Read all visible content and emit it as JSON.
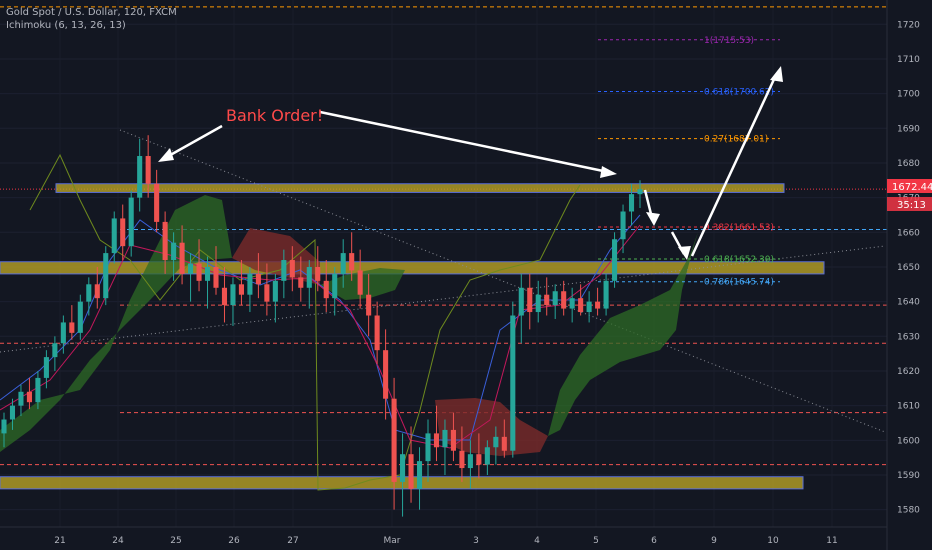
{
  "legend": {
    "symbol_line": "Gold Spot / U.S. Dollar, 120, FXCM",
    "indicator_line": "Ichimoku (6, 13, 26, 13)"
  },
  "annotation": "Bank Order!",
  "price_badge": {
    "price": "1672.44",
    "countdown": "35:13",
    "color": "#f23645"
  },
  "colors": {
    "bg": "#131722",
    "up": "#26a69a",
    "down": "#ef5350",
    "zone": "#b8a126",
    "cloud_bull": "#2e6b26",
    "cloud_bear": "#7a2a2a"
  },
  "chart_data": {
    "type": "candlestick",
    "title": "",
    "ylim": [
      1575,
      1727
    ],
    "y_ticks": [
      1580,
      1590,
      1600,
      1610,
      1620,
      1630,
      1640,
      1650,
      1660,
      1670,
      1680,
      1690,
      1700,
      1710,
      1720
    ],
    "x_ticks": [
      "21",
      "24",
      "25",
      "26",
      "27",
      "Mar",
      "3",
      "4",
      "5",
      "6",
      "9",
      "10",
      "11"
    ],
    "current_price": 1672.44,
    "fibonacci": [
      {
        "label": "1(1715.53)",
        "price": 1715.53,
        "color": "#9c27b0"
      },
      {
        "label": "0.618(1700.62)",
        "price": 1700.62,
        "color": "#2962ff"
      },
      {
        "label": "0.27(1687.01)",
        "price": 1687.01,
        "color": "#ff9800"
      },
      {
        "label": "0.382(1661.53)",
        "price": 1661.53,
        "color": "#f23645"
      },
      {
        "label": "0.618(1652.30)",
        "price": 1652.3,
        "color": "#4caf50"
      },
      {
        "label": "0.786(1645.74)",
        "price": 1645.74,
        "color": "#42a5f5"
      }
    ],
    "zones": [
      {
        "low": 1671.5,
        "high": 1674.0
      },
      {
        "low": 1648.0,
        "high": 1651.5
      },
      {
        "low": 1586.0,
        "high": 1589.5
      }
    ],
    "dashed_levels": [
      {
        "price": 1725.0,
        "color": "#ff9800"
      },
      {
        "price": 1660.8,
        "color": "#42a5f5"
      },
      {
        "price": 1639.0,
        "color": "#ef5350"
      },
      {
        "price": 1628.0,
        "color": "#ef5350"
      },
      {
        "price": 1608.0,
        "color": "#ef5350"
      },
      {
        "price": 1593.0,
        "color": "#ef5350"
      }
    ],
    "candles": [
      {
        "o": 1602,
        "h": 1608,
        "l": 1598,
        "c": 1606
      },
      {
        "o": 1606,
        "h": 1612,
        "l": 1603,
        "c": 1610
      },
      {
        "o": 1610,
        "h": 1616,
        "l": 1607,
        "c": 1614
      },
      {
        "o": 1614,
        "h": 1618,
        "l": 1609,
        "c": 1611
      },
      {
        "o": 1611,
        "h": 1620,
        "l": 1609,
        "c": 1618
      },
      {
        "o": 1618,
        "h": 1626,
        "l": 1615,
        "c": 1624
      },
      {
        "o": 1624,
        "h": 1630,
        "l": 1620,
        "c": 1628
      },
      {
        "o": 1628,
        "h": 1636,
        "l": 1625,
        "c": 1634
      },
      {
        "o": 1634,
        "h": 1639,
        "l": 1629,
        "c": 1631
      },
      {
        "o": 1631,
        "h": 1642,
        "l": 1629,
        "c": 1640
      },
      {
        "o": 1640,
        "h": 1647,
        "l": 1636,
        "c": 1645
      },
      {
        "o": 1645,
        "h": 1650,
        "l": 1638,
        "c": 1641
      },
      {
        "o": 1641,
        "h": 1656,
        "l": 1639,
        "c": 1654
      },
      {
        "o": 1654,
        "h": 1666,
        "l": 1651,
        "c": 1664
      },
      {
        "o": 1664,
        "h": 1668,
        "l": 1652,
        "c": 1656
      },
      {
        "o": 1656,
        "h": 1672,
        "l": 1653,
        "c": 1670
      },
      {
        "o": 1670,
        "h": 1687,
        "l": 1666,
        "c": 1682
      },
      {
        "o": 1682,
        "h": 1688,
        "l": 1670,
        "c": 1674
      },
      {
        "o": 1674,
        "h": 1678,
        "l": 1660,
        "c": 1663
      },
      {
        "o": 1663,
        "h": 1666,
        "l": 1648,
        "c": 1652
      },
      {
        "o": 1652,
        "h": 1660,
        "l": 1646,
        "c": 1657
      },
      {
        "o": 1657,
        "h": 1662,
        "l": 1645,
        "c": 1648
      },
      {
        "o": 1648,
        "h": 1654,
        "l": 1640,
        "c": 1651
      },
      {
        "o": 1651,
        "h": 1658,
        "l": 1643,
        "c": 1646
      },
      {
        "o": 1646,
        "h": 1653,
        "l": 1638,
        "c": 1650
      },
      {
        "o": 1650,
        "h": 1656,
        "l": 1642,
        "c": 1644
      },
      {
        "o": 1644,
        "h": 1650,
        "l": 1634,
        "c": 1639
      },
      {
        "o": 1639,
        "h": 1647,
        "l": 1633,
        "c": 1645
      },
      {
        "o": 1645,
        "h": 1652,
        "l": 1639,
        "c": 1642
      },
      {
        "o": 1642,
        "h": 1650,
        "l": 1637,
        "c": 1648
      },
      {
        "o": 1648,
        "h": 1654,
        "l": 1641,
        "c": 1645
      },
      {
        "o": 1645,
        "h": 1651,
        "l": 1636,
        "c": 1640
      },
      {
        "o": 1640,
        "h": 1648,
        "l": 1634,
        "c": 1646
      },
      {
        "o": 1646,
        "h": 1655,
        "l": 1641,
        "c": 1652
      },
      {
        "o": 1652,
        "h": 1656,
        "l": 1643,
        "c": 1647
      },
      {
        "o": 1647,
        "h": 1653,
        "l": 1640,
        "c": 1644
      },
      {
        "o": 1644,
        "h": 1652,
        "l": 1638,
        "c": 1650
      },
      {
        "o": 1650,
        "h": 1656,
        "l": 1643,
        "c": 1646
      },
      {
        "o": 1646,
        "h": 1652,
        "l": 1637,
        "c": 1641
      },
      {
        "o": 1641,
        "h": 1650,
        "l": 1636,
        "c": 1648
      },
      {
        "o": 1648,
        "h": 1658,
        "l": 1644,
        "c": 1654
      },
      {
        "o": 1654,
        "h": 1660,
        "l": 1646,
        "c": 1649
      },
      {
        "o": 1649,
        "h": 1655,
        "l": 1638,
        "c": 1642
      },
      {
        "o": 1642,
        "h": 1648,
        "l": 1630,
        "c": 1636
      },
      {
        "o": 1636,
        "h": 1640,
        "l": 1622,
        "c": 1626
      },
      {
        "o": 1626,
        "h": 1632,
        "l": 1606,
        "c": 1612
      },
      {
        "o": 1612,
        "h": 1618,
        "l": 1580,
        "c": 1588
      },
      {
        "o": 1588,
        "h": 1602,
        "l": 1578,
        "c": 1596
      },
      {
        "o": 1596,
        "h": 1604,
        "l": 1582,
        "c": 1586
      },
      {
        "o": 1586,
        "h": 1598,
        "l": 1580,
        "c": 1594
      },
      {
        "o": 1594,
        "h": 1606,
        "l": 1588,
        "c": 1602
      },
      {
        "o": 1602,
        "h": 1610,
        "l": 1594,
        "c": 1598
      },
      {
        "o": 1598,
        "h": 1606,
        "l": 1590,
        "c": 1603
      },
      {
        "o": 1603,
        "h": 1608,
        "l": 1594,
        "c": 1597
      },
      {
        "o": 1597,
        "h": 1604,
        "l": 1588,
        "c": 1592
      },
      {
        "o": 1592,
        "h": 1600,
        "l": 1586,
        "c": 1596
      },
      {
        "o": 1596,
        "h": 1602,
        "l": 1589,
        "c": 1593
      },
      {
        "o": 1593,
        "h": 1600,
        "l": 1590,
        "c": 1598
      },
      {
        "o": 1598,
        "h": 1604,
        "l": 1593,
        "c": 1601
      },
      {
        "o": 1601,
        "h": 1606,
        "l": 1595,
        "c": 1597
      },
      {
        "o": 1597,
        "h": 1640,
        "l": 1595,
        "c": 1636
      },
      {
        "o": 1636,
        "h": 1648,
        "l": 1628,
        "c": 1644
      },
      {
        "o": 1644,
        "h": 1648,
        "l": 1632,
        "c": 1637
      },
      {
        "o": 1637,
        "h": 1646,
        "l": 1634,
        "c": 1642
      },
      {
        "o": 1642,
        "h": 1647,
        "l": 1636,
        "c": 1639
      },
      {
        "o": 1639,
        "h": 1645,
        "l": 1635,
        "c": 1643
      },
      {
        "o": 1643,
        "h": 1646,
        "l": 1636,
        "c": 1638
      },
      {
        "o": 1638,
        "h": 1644,
        "l": 1634,
        "c": 1641
      },
      {
        "o": 1641,
        "h": 1645,
        "l": 1636,
        "c": 1637
      },
      {
        "o": 1637,
        "h": 1643,
        "l": 1634,
        "c": 1640
      },
      {
        "o": 1640,
        "h": 1644,
        "l": 1636,
        "c": 1638
      },
      {
        "o": 1638,
        "h": 1648,
        "l": 1636,
        "c": 1646
      },
      {
        "o": 1646,
        "h": 1660,
        "l": 1644,
        "c": 1658
      },
      {
        "o": 1658,
        "h": 1668,
        "l": 1654,
        "c": 1666
      },
      {
        "o": 1666,
        "h": 1674,
        "l": 1662,
        "c": 1671
      },
      {
        "o": 1671,
        "h": 1675,
        "l": 1667,
        "c": 1672.44
      }
    ]
  }
}
